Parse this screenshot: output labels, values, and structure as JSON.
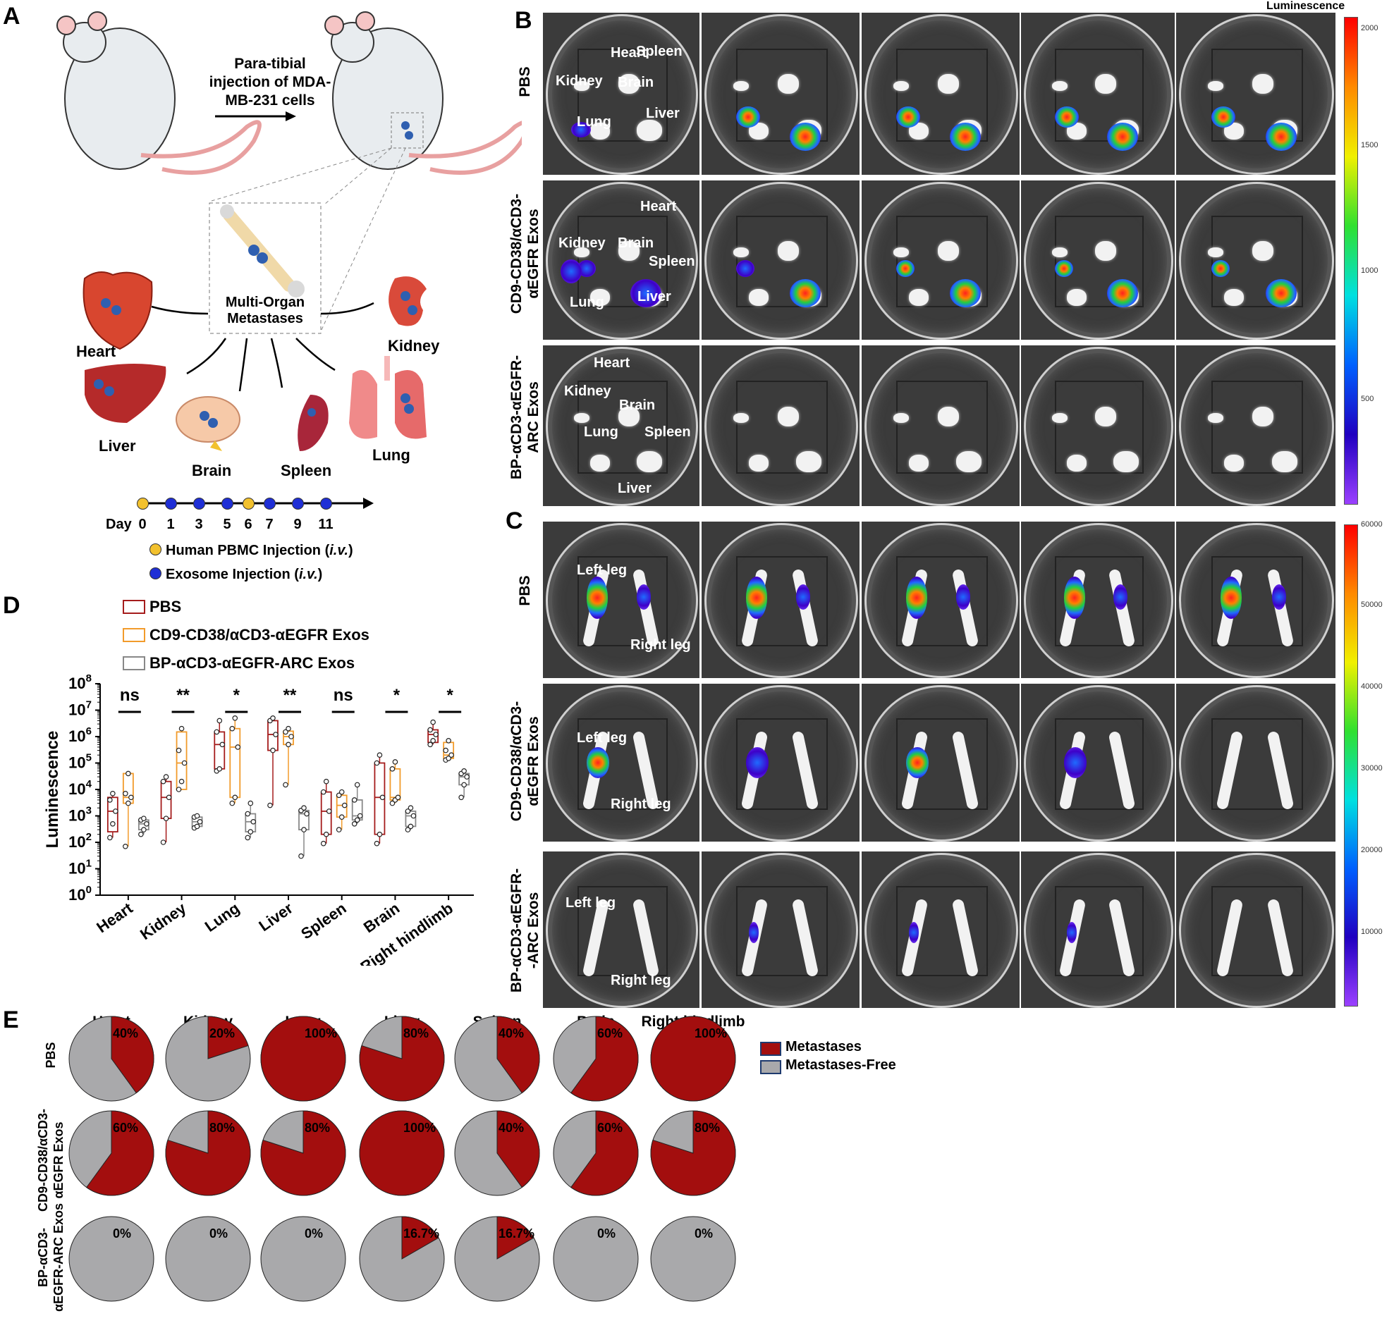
{
  "panels": {
    "A": "A",
    "B": "B",
    "C": "C",
    "D": "D",
    "E": "E"
  },
  "panelA": {
    "injection_text": [
      "Para-tibial",
      "injection of MDA-",
      "MB-231 cells"
    ],
    "metastases_label": [
      "Multi-Organ",
      "Metastases"
    ],
    "organs": {
      "heart": "Heart",
      "kidney": "Kidney",
      "liver": "Liver",
      "brain": "Brain",
      "spleen": "Spleen",
      "lung": "Lung"
    },
    "timeline": {
      "day_label": "Day",
      "days": [
        "0",
        "1",
        "3",
        "5",
        "6",
        "7",
        "9",
        "11"
      ],
      "legend_pbmc": "Human PBMC Injection (",
      "legend_exo": "Exosome Injection (",
      "iv": "i.v.",
      "close": ")",
      "pbmc_color": "#f2c12e",
      "exo_color": "#1f2fd6"
    }
  },
  "panelB": {
    "colorbar_title": "Luminescence",
    "colorbar_ticks": [
      "2000",
      "1500",
      "1000",
      "500"
    ],
    "rows": [
      "PBS",
      "CD9-CD38/αCD3-\nαEGFR Exos",
      "BP-αCD3-αEGFR-\nARC Exos"
    ],
    "row1_labels": {
      "heart": "Heart",
      "spleen": "Spleen",
      "kidney": "Kidney",
      "brain": "Brain",
      "liver": "Liver",
      "lung": "Lung"
    },
    "row2_labels": {
      "heart": "Heart",
      "kidney": "Kidney",
      "brain": "Brain",
      "spleen": "Spleen",
      "lung": "Lung",
      "liver": "Liver"
    },
    "row3_labels": {
      "heart": "Heart",
      "kidney": "Kidney",
      "brain": "Brain",
      "lung": "Lung",
      "spleen": "Spleen",
      "liver": "Liver"
    }
  },
  "panelC": {
    "colorbar_ticks": [
      "60000",
      "50000",
      "40000",
      "30000",
      "20000",
      "10000"
    ],
    "rows": [
      "PBS",
      "CD9-CD38/αCD3-\nαEGFR Exos",
      "BP-αCD3-αEGFR-\n-ARC Exos"
    ],
    "left_leg": "Left leg",
    "right_leg": "Right leg"
  },
  "panelD": {
    "legend": [
      {
        "name": "PBS",
        "color": "#a51c1c"
      },
      {
        "name": "CD9-CD38/αCD3-αEGFR Exos",
        "color": "#f29b2b"
      },
      {
        "name": "BP-αCD3-αEGFR-ARC Exos",
        "color": "#888888"
      }
    ]
  },
  "chart_data": [
    {
      "type": "box",
      "ylabel": "Luminescence",
      "yscale": "log",
      "ylim": [
        1,
        100000000
      ],
      "ytick_labels": [
        "10^0",
        "10^1",
        "10^2",
        "10^3",
        "10^4",
        "10^5",
        "10^6",
        "10^7",
        "10^8"
      ],
      "categories": [
        "Heart",
        "Kidney",
        "Lung",
        "Liver",
        "Spleen",
        "Brain",
        "Right hindlimb"
      ],
      "significance": [
        "ns",
        "**",
        "*",
        "**",
        "ns",
        "*",
        "*"
      ],
      "series": [
        {
          "name": "PBS",
          "color": "#a51c1c",
          "boxes": [
            {
              "min": 150,
              "q1": 250,
              "median": 1500,
              "q3": 5000,
              "max": 7000,
              "points": [
                150,
                500,
                1500,
                4000,
                7000
              ]
            },
            {
              "min": 100,
              "q1": 800,
              "median": 5000,
              "q3": 20000,
              "max": 30000,
              "points": [
                100,
                800,
                5000,
                20000,
                30000
              ]
            },
            {
              "min": 50000,
              "q1": 60000,
              "median": 500000,
              "q3": 1500000,
              "max": 4000000,
              "points": [
                50000,
                60000,
                500000,
                1500000,
                4000000
              ]
            },
            {
              "min": 2500,
              "q1": 300000,
              "median": 1200000,
              "q3": 4000000,
              "max": 5000000,
              "points": [
                2500,
                300000,
                1200000,
                4000000,
                5000000
              ]
            },
            {
              "min": 90,
              "q1": 200,
              "median": 1500,
              "q3": 8000,
              "max": 20000,
              "points": [
                90,
                200,
                1500,
                8000,
                20000
              ]
            },
            {
              "min": 90,
              "q1": 200,
              "median": 5000,
              "q3": 100000,
              "max": 200000,
              "points": [
                90,
                200,
                5000,
                100000,
                200000
              ]
            },
            {
              "min": 500000,
              "q1": 600000,
              "median": 1200000,
              "q3": 1800000,
              "max": 3500000,
              "points": [
                500000,
                700000,
                1200000,
                1800000,
                3500000
              ]
            }
          ]
        },
        {
          "name": "CD9-CD38/αCD3-αEGFR Exos",
          "color": "#f29b2b",
          "boxes": [
            {
              "min": 70,
              "q1": 3000,
              "median": 5000,
              "q3": 40000,
              "max": 40000,
              "points": [
                70,
                3000,
                5000,
                7000,
                40000
              ]
            },
            {
              "min": 10000,
              "q1": 10000,
              "median": 100000,
              "q3": 1500000,
              "max": 2000000,
              "points": [
                10000,
                20000,
                100000,
                300000,
                2000000
              ]
            },
            {
              "min": 3000,
              "q1": 5000,
              "median": 400000,
              "q3": 2000000,
              "max": 5000000,
              "points": [
                3000,
                5000,
                400000,
                2000000,
                5000000
              ]
            },
            {
              "min": 15000,
              "q1": 500000,
              "median": 1000000,
              "q3": 1600000,
              "max": 2000000,
              "points": [
                15000,
                500000,
                1000000,
                1500000,
                2000000
              ]
            },
            {
              "min": 300,
              "q1": 900,
              "median": 2500,
              "q3": 6000,
              "max": 8000,
              "points": [
                300,
                900,
                2500,
                6000,
                8000
              ]
            },
            {
              "min": 3000,
              "q1": 4000,
              "median": 5000,
              "q3": 60000,
              "max": 110000,
              "points": [
                3000,
                4000,
                5000,
                60000,
                110000
              ]
            },
            {
              "min": 130000,
              "q1": 150000,
              "median": 200000,
              "q3": 600000,
              "max": 700000,
              "points": [
                130000,
                150000,
                200000,
                300000,
                700000
              ]
            }
          ]
        },
        {
          "name": "BP-αCD3-αEGFR-ARC Exos",
          "color": "#888888",
          "boxes": [
            {
              "min": 200,
              "q1": 300,
              "median": 500,
              "q3": 700,
              "max": 800,
              "points": [
                200,
                300,
                500,
                700,
                800
              ]
            },
            {
              "min": 350,
              "q1": 400,
              "median": 600,
              "q3": 900,
              "max": 1000,
              "points": [
                350,
                400,
                600,
                900,
                1000
              ]
            },
            {
              "min": 150,
              "q1": 250,
              "median": 600,
              "q3": 1200,
              "max": 3000,
              "points": [
                150,
                250,
                600,
                1200,
                3000
              ]
            },
            {
              "min": 30,
              "q1": 300,
              "median": 1200,
              "q3": 1600,
              "max": 2000,
              "points": [
                30,
                300,
                1200,
                1600,
                2000
              ]
            },
            {
              "min": 500,
              "q1": 700,
              "median": 1000,
              "q3": 4000,
              "max": 15000,
              "points": [
                500,
                700,
                1000,
                4000,
                15000
              ]
            },
            {
              "min": 300,
              "q1": 400,
              "median": 1000,
              "q3": 1500,
              "max": 2000,
              "points": [
                300,
                400,
                1000,
                1500,
                2000
              ]
            },
            {
              "min": 5000,
              "q1": 15000,
              "median": 30000,
              "q3": 40000,
              "max": 50000,
              "points": [
                5000,
                15000,
                30000,
                40000,
                50000
              ]
            }
          ]
        }
      ]
    },
    {
      "type": "pie",
      "columns": [
        "Heart",
        "Kidney",
        "Lung",
        "Liver",
        "Spleen",
        "Brain",
        "Right hindlimb"
      ],
      "rows": [
        "PBS",
        "CD9-CD38/αCD3-\nαEGFR Exos",
        "BP-αCD3-\nαEGFR-ARC Exos"
      ],
      "legend": [
        {
          "name": "Metastases",
          "color": "#a30e0e"
        },
        {
          "name": "Metastases-Free",
          "color": "#a9a9ab"
        }
      ],
      "values": [
        [
          40,
          20,
          100,
          80,
          40,
          60,
          100
        ],
        [
          60,
          80,
          80,
          100,
          40,
          60,
          80
        ],
        [
          0,
          0,
          0,
          16.7,
          16.7,
          0,
          0
        ]
      ],
      "labels": [
        [
          "40%",
          "20%",
          "100%",
          "80%",
          "40%",
          "60%",
          "100%"
        ],
        [
          "60%",
          "80%",
          "80%",
          "100%",
          "40%",
          "60%",
          "80%"
        ],
        [
          "0%",
          "0%",
          "0%",
          "16.7%",
          "16.7%",
          "0%",
          "0%"
        ]
      ]
    }
  ]
}
